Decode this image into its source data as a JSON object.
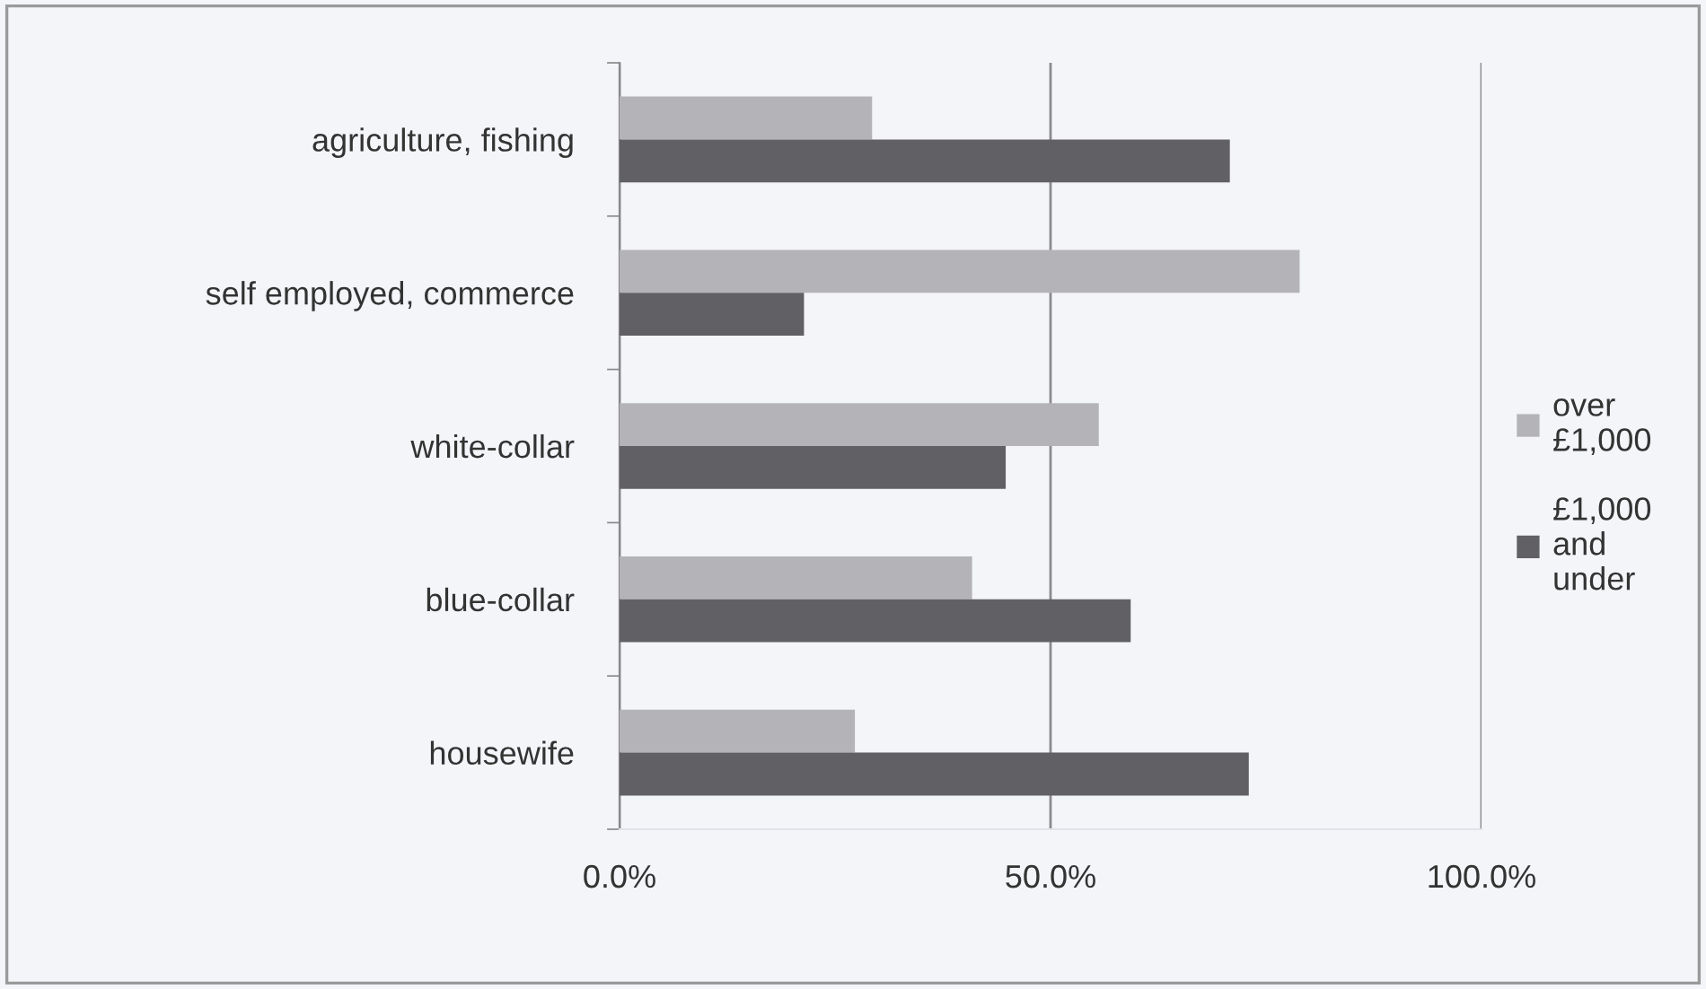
{
  "chart_data": {
    "type": "bar",
    "orientation": "horizontal",
    "categories": [
      "agriculture, fishing",
      "self employed, commerce",
      "white-collar",
      "blue-collar",
      "housewife"
    ],
    "series": [
      {
        "name": "over £1,000",
        "color": "#b4b4b8",
        "values": [
          29.3,
          78.9,
          55.6,
          40.9,
          27.3
        ]
      },
      {
        "name": "£1,000 and under",
        "color": "#616165",
        "values": [
          70.8,
          21.4,
          44.8,
          59.3,
          73.0
        ]
      }
    ],
    "xlim": [
      0,
      100
    ],
    "xticks": [
      {
        "value": 0,
        "label": "0.0%"
      },
      {
        "value": 50,
        "label": "50.0%"
      },
      {
        "value": 100,
        "label": "100.0%"
      }
    ],
    "grid": "x",
    "legend": "right"
  }
}
